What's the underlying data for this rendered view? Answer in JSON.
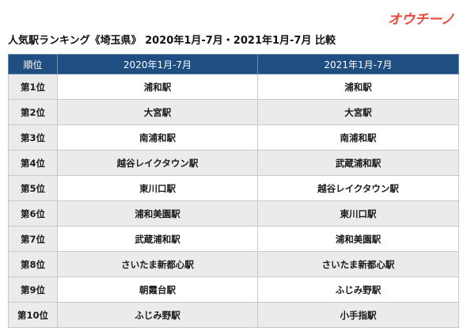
{
  "logo_text": "オウチーノ",
  "title": "人気駅ランキング《埼玉県》 2020年1月-7月・2021年1月-7月 比較",
  "table": {
    "headers": [
      "順位",
      "2020年1月-7月",
      "2021年1月-7月"
    ],
    "rows": [
      {
        "rank": "第1位",
        "y2020": "浦和駅",
        "y2021": "浦和駅"
      },
      {
        "rank": "第2位",
        "y2020": "大宮駅",
        "y2021": "大宮駅"
      },
      {
        "rank": "第3位",
        "y2020": "南浦和駅",
        "y2021": "南浦和駅"
      },
      {
        "rank": "第4位",
        "y2020": "越谷レイクタウン駅",
        "y2021": "武蔵浦和駅"
      },
      {
        "rank": "第5位",
        "y2020": "東川口駅",
        "y2021": "越谷レイクタウン駅"
      },
      {
        "rank": "第6位",
        "y2020": "浦和美園駅",
        "y2021": "東川口駅"
      },
      {
        "rank": "第7位",
        "y2020": "武蔵浦和駅",
        "y2021": "浦和美園駅"
      },
      {
        "rank": "第8位",
        "y2020": "さいたま新都心駅",
        "y2021": "さいたま新都心駅"
      },
      {
        "rank": "第9位",
        "y2020": "朝霞台駅",
        "y2021": "ふじみ野駅"
      },
      {
        "rank": "第10位",
        "y2020": "ふじみ野駅",
        "y2021": "小手指駅"
      }
    ]
  },
  "colors": {
    "header_bg": "#1f4f82",
    "header_text": "#ffffff",
    "logo": "#e8473c",
    "row_alt_bg": "#ebebeb"
  }
}
